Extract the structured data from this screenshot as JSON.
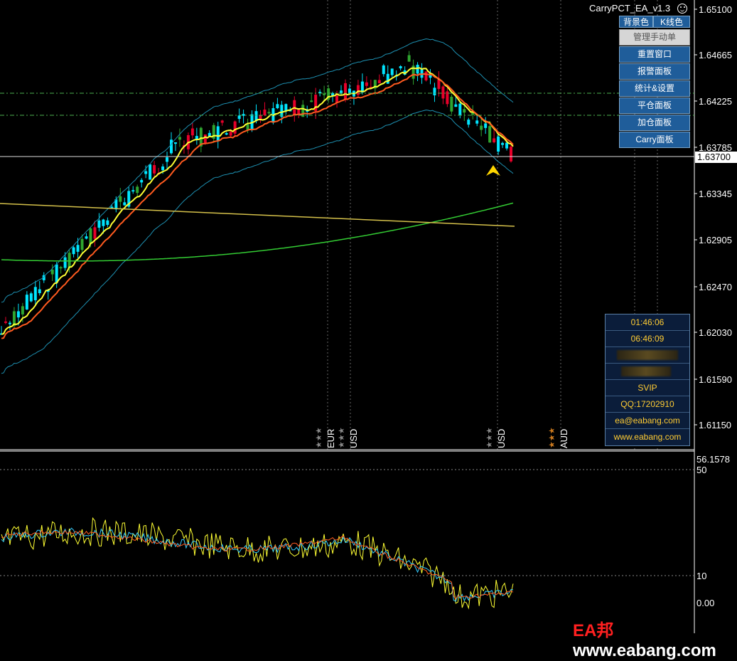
{
  "ea_title": "CarryPCT_EA_v1.3",
  "top_buttons": [
    {
      "label": "背景色"
    },
    {
      "label": "K线色"
    }
  ],
  "panel_buttons": [
    {
      "label": "管理手动单",
      "disabled": true
    },
    {
      "label": "重置窗口"
    },
    {
      "label": "报警面板"
    },
    {
      "label": "统计&设置"
    },
    {
      "label": "平仓面板"
    },
    {
      "label": "加仓面板"
    },
    {
      "label": "Carry面板"
    }
  ],
  "info_panel": {
    "time_1": "01:46:06",
    "time_2": "06:46:09",
    "level": "SVIP",
    "qq": "QQ:17202910",
    "email": "ea@eabang.com",
    "website": "www.eabang.com"
  },
  "price_axis": [
    "1.65100",
    "1.64665",
    "1.64225",
    "1.63785",
    "1.63345",
    "1.62905",
    "1.62470",
    "1.62030",
    "1.61590",
    "1.61150"
  ],
  "current_price": "1.63700",
  "oscillator_axis": [
    "56.1578",
    "50",
    "10",
    "0.00"
  ],
  "news_labels": [
    "EUR",
    "USD",
    "USD",
    "AUD"
  ],
  "watermark": {
    "brand": "EA邦",
    "site": "www.eabang.com"
  },
  "colors": {
    "bull": "#00e5ff",
    "bear": "#e8002a",
    "ma_fast": "#ffff33",
    "ma_mid": "#ff5a1f",
    "ma_slow": "#33cc33",
    "ma_long": "#d4c04a",
    "band": "#1d8fb0",
    "panel": "#1f5d9a"
  }
}
